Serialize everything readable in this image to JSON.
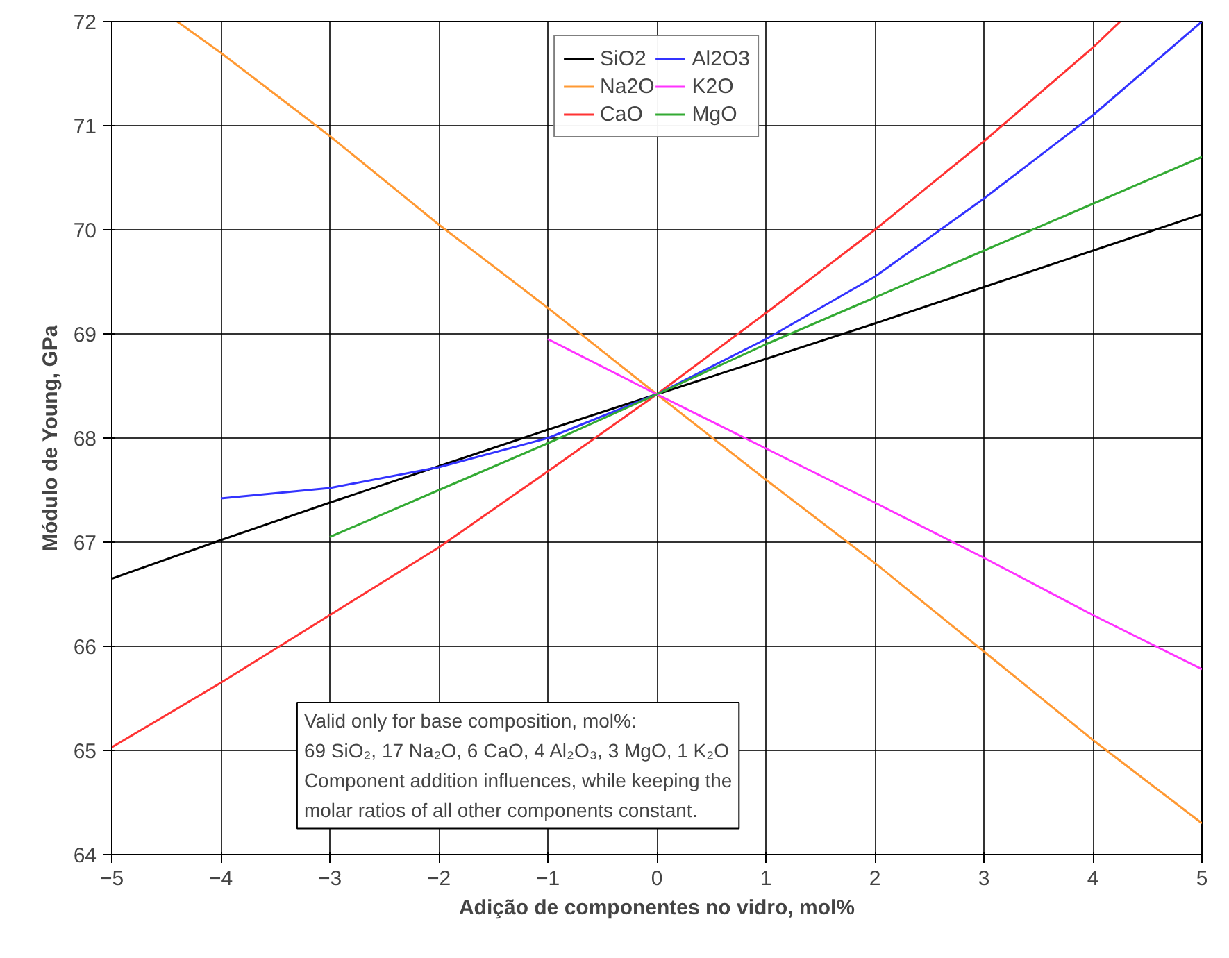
{
  "chart_data": {
    "type": "line",
    "xlabel": "Adição de componentes no vidro, mol%",
    "ylabel": "Módulo de Young, GPa",
    "xlim": [
      -5,
      5
    ],
    "xticks": [
      -5,
      -4,
      -3,
      -2,
      -1,
      0,
      1,
      2,
      3,
      4,
      5
    ],
    "ylim": [
      64,
      72
    ],
    "yticks": [
      64,
      65,
      66,
      67,
      68,
      69,
      70,
      71,
      72
    ],
    "grid": true,
    "legend": "top",
    "line_style": "solid",
    "marker": "none",
    "series": [
      {
        "name": "SiO2",
        "color": "#000000",
        "x": [
          -5,
          -4,
          -3,
          -2,
          -1,
          0,
          1,
          2,
          3,
          4,
          5
        ],
        "values": [
          66.65,
          67.02,
          67.38,
          67.73,
          68.08,
          68.42,
          68.76,
          69.1,
          69.45,
          69.8,
          70.15
        ]
      },
      {
        "name": "Na2O",
        "color": "#ff9933",
        "x": [
          -4.4,
          -4,
          -3,
          -2,
          -1,
          0,
          1,
          2,
          3,
          4,
          5
        ],
        "values": [
          72,
          71.7,
          70.9,
          70.05,
          69.25,
          68.42,
          67.6,
          66.8,
          65.95,
          65.1,
          64.3
        ]
      },
      {
        "name": "CaO",
        "color": "#ff3333",
        "x": [
          -5,
          -4,
          -3,
          -2,
          -1,
          0,
          1,
          2,
          3,
          4,
          4.25
        ],
        "values": [
          65.03,
          65.65,
          66.3,
          66.95,
          67.68,
          68.42,
          69.2,
          70.0,
          70.85,
          71.75,
          72
        ]
      },
      {
        "name": "Al2O3",
        "color": "#3333ff",
        "x": [
          -4,
          -3,
          -2,
          -1,
          0,
          1,
          2,
          3,
          4,
          5
        ],
        "values": [
          67.42,
          67.52,
          67.72,
          68.0,
          68.42,
          68.95,
          69.55,
          70.3,
          71.1,
          72.0
        ]
      },
      {
        "name": "K2O",
        "color": "#ff33ff",
        "x": [
          -1,
          0,
          1,
          2,
          3,
          4,
          5
        ],
        "values": [
          68.95,
          68.42,
          67.9,
          67.38,
          66.85,
          66.3,
          65.78
        ]
      },
      {
        "name": "MgO",
        "color": "#33aa33",
        "x": [
          -3,
          -2,
          -1,
          0,
          1,
          2,
          3,
          4,
          5
        ],
        "values": [
          67.05,
          67.5,
          67.95,
          68.42,
          68.9,
          69.35,
          69.8,
          70.25,
          70.7
        ]
      }
    ],
    "annotations": [
      "Valid only for base composition, mol%:",
      "69 SiO₂, 17 Na₂O, 6 CaO, 4 Al₂O₃, 3 MgO, 1 K₂O",
      "Component addition influences, while keeping the",
      "molar ratios of all other components constant."
    ]
  }
}
